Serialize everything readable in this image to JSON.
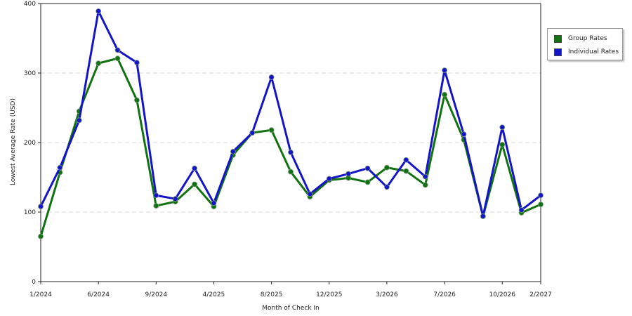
{
  "colors": {
    "group": "#127212",
    "individual": "#1414c8",
    "grid": "#d9d9d9",
    "axis": "#222222"
  },
  "chart_data": {
    "type": "line",
    "xlabel": "Month of Check In",
    "ylabel": "Lowest Average Rate (USD)",
    "ylim": [
      0,
      400
    ],
    "yticks": [
      0,
      100,
      200,
      300,
      400
    ],
    "grid": "horizontal dashed",
    "legend_position": "right",
    "x_tick_labels": [
      "1/2024",
      "6/2024",
      "9/2024",
      "4/2025",
      "8/2025",
      "12/2025",
      "3/2026",
      "7/2026",
      "10/2026",
      "2/2027"
    ],
    "x_tick_positions": [
      0,
      3,
      6,
      9,
      12,
      15,
      18,
      21,
      24,
      26
    ],
    "series": [
      {
        "name": "Group Rates",
        "color": "#127212",
        "values": [
          65,
          157,
          245,
          314,
          321,
          261,
          109,
          115,
          140,
          108,
          182,
          214,
          218,
          158,
          122,
          146,
          149,
          143,
          164,
          159,
          139,
          269,
          204,
          94,
          197,
          99,
          111
        ]
      },
      {
        "name": "Individual Rates",
        "color": "#1414c8",
        "values": [
          108,
          164,
          232,
          389,
          333,
          315,
          124,
          119,
          163,
          113,
          187,
          214,
          294,
          186,
          126,
          148,
          155,
          163,
          136,
          175,
          151,
          304,
          212,
          94,
          222,
          103,
          124
        ]
      }
    ]
  }
}
